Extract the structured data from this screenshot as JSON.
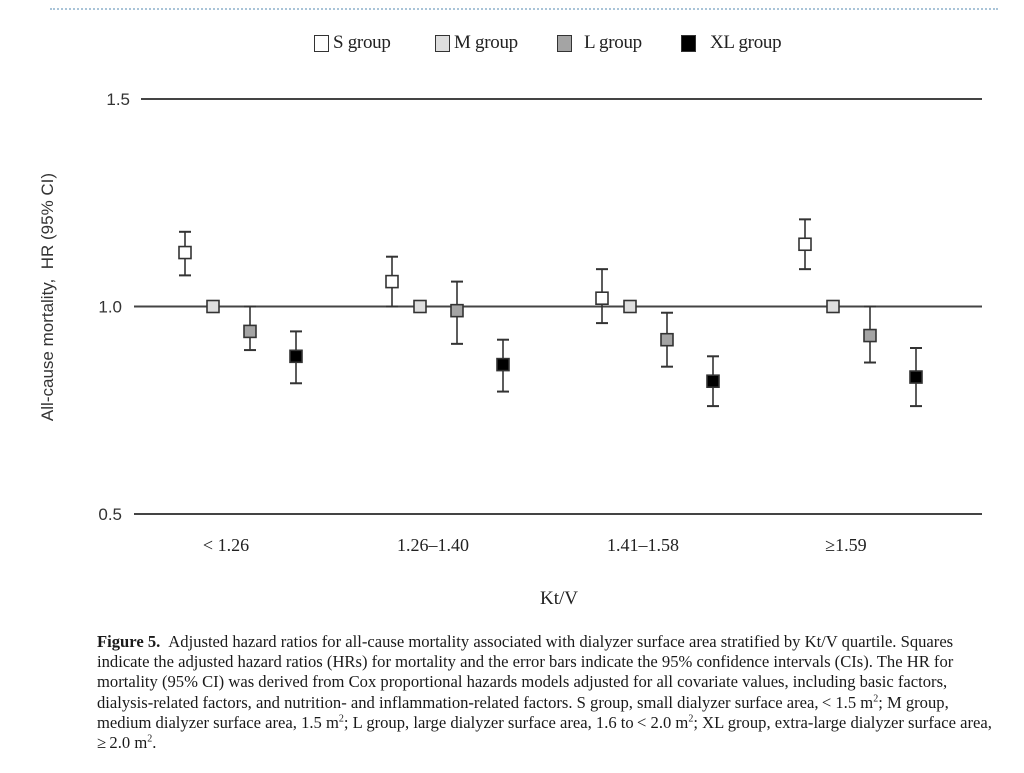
{
  "colors": {
    "S": "#ffffff",
    "M": "#dedede",
    "L": "#a4a4a4",
    "XL": "#000000",
    "axis_line": "#444444",
    "marker_border": "#333333"
  },
  "legend": [
    {
      "key": "S",
      "label": "S group"
    },
    {
      "key": "M",
      "label": "M group"
    },
    {
      "key": "L",
      "label": "L group"
    },
    {
      "key": "XL",
      "label": "XL group"
    }
  ],
  "chart_data": {
    "type": "scatter",
    "subtype": "forest-plot-with-error-bars",
    "xlabel": "Kt/V",
    "ylabel": "All-cause mortality,  HR (95% CI)",
    "ylim": [
      0.5,
      1.5
    ],
    "yticks": [
      "0.5",
      "1.0",
      "1.5"
    ],
    "ytick_values": [
      0.5,
      1.0,
      1.5
    ],
    "grid": "horizontal lines at 0.5, 1.0, 1.5",
    "legend_position": "top-center",
    "categories": [
      "< 1.26",
      "1.26–1.40",
      "1.41–1.58",
      "≥1.59"
    ],
    "series": [
      {
        "name": "S group",
        "key": "S",
        "values": [
          1.13,
          1.06,
          1.02,
          1.15
        ],
        "ci_low": [
          1.075,
          1.0,
          0.96,
          1.09
        ],
        "ci_high": [
          1.18,
          1.12,
          1.09,
          1.21
        ]
      },
      {
        "name": "M group",
        "key": "M",
        "values": [
          1.0,
          1.0,
          1.0,
          1.0
        ],
        "ci_low": [
          1.0,
          1.0,
          1.0,
          1.0
        ],
        "ci_high": [
          1.0,
          1.0,
          1.0,
          1.0
        ]
      },
      {
        "name": "L group",
        "key": "L",
        "values": [
          0.94,
          0.99,
          0.92,
          0.93
        ],
        "ci_low": [
          0.895,
          0.91,
          0.855,
          0.865
        ],
        "ci_high": [
          1.0,
          1.06,
          0.985,
          1.0
        ]
      },
      {
        "name": "XL group",
        "key": "XL",
        "values": [
          0.88,
          0.86,
          0.82,
          0.83
        ],
        "ci_low": [
          0.815,
          0.795,
          0.76,
          0.76
        ],
        "ci_high": [
          0.94,
          0.92,
          0.88,
          0.9
        ]
      }
    ]
  },
  "caption": {
    "label": "Figure 5.",
    "text_1": "Adjusted hazard ratios for all-cause mortality associated with dialyzer surface area stratified by Kt/V quartile. Squares indicate the adjusted hazard ratios (HRs) for mortality and the error bars indicate the 95% confidence intervals (CIs). The HR for mortality (95% CI) was derived from Cox proportional hazards models adjusted for all covariate values, including basic factors, dialysis-related factors, and nutrition- and inflammation-related factors. S group, small dialyzer surface area, < 1.5 m",
    "sup_1": "2",
    "text_2": "; M group, medium dialyzer surface area, 1.5 m",
    "sup_2": "2",
    "text_3": "; L group, large dialyzer surface area, 1.6 to < 2.0 m",
    "sup_3": "2",
    "text_4": "; XL group, extra-large dialyzer surface area, ≥ 2.0 m",
    "sup_4": "2",
    "text_5": "."
  }
}
